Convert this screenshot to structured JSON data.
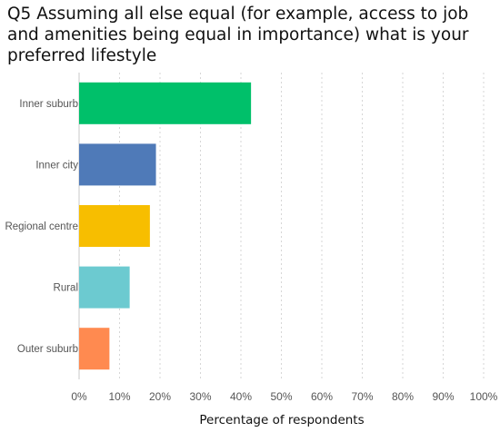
{
  "chart_data": {
    "type": "bar",
    "orientation": "horizontal",
    "title": "Q5 Assuming all else equal (for example, access to job and amenities being equal in importance) what is your preferred lifestyle",
    "xlabel": "Percentage of respondents",
    "ylabel": "",
    "categories": [
      "Inner suburb",
      "Inner city",
      "Regional centre",
      "Rural",
      "Outer suburb"
    ],
    "values": [
      42.5,
      19,
      17.5,
      12.5,
      7.5
    ],
    "colors": [
      "#00c06a",
      "#4f7ab8",
      "#f7be00",
      "#6ccad0",
      "#ff8a50"
    ],
    "xlim": [
      0,
      100
    ],
    "x_ticks": [
      "0%",
      "10%",
      "20%",
      "30%",
      "40%",
      "50%",
      "60%",
      "70%",
      "80%",
      "90%",
      "100%"
    ],
    "grid": true,
    "legend": "none"
  }
}
